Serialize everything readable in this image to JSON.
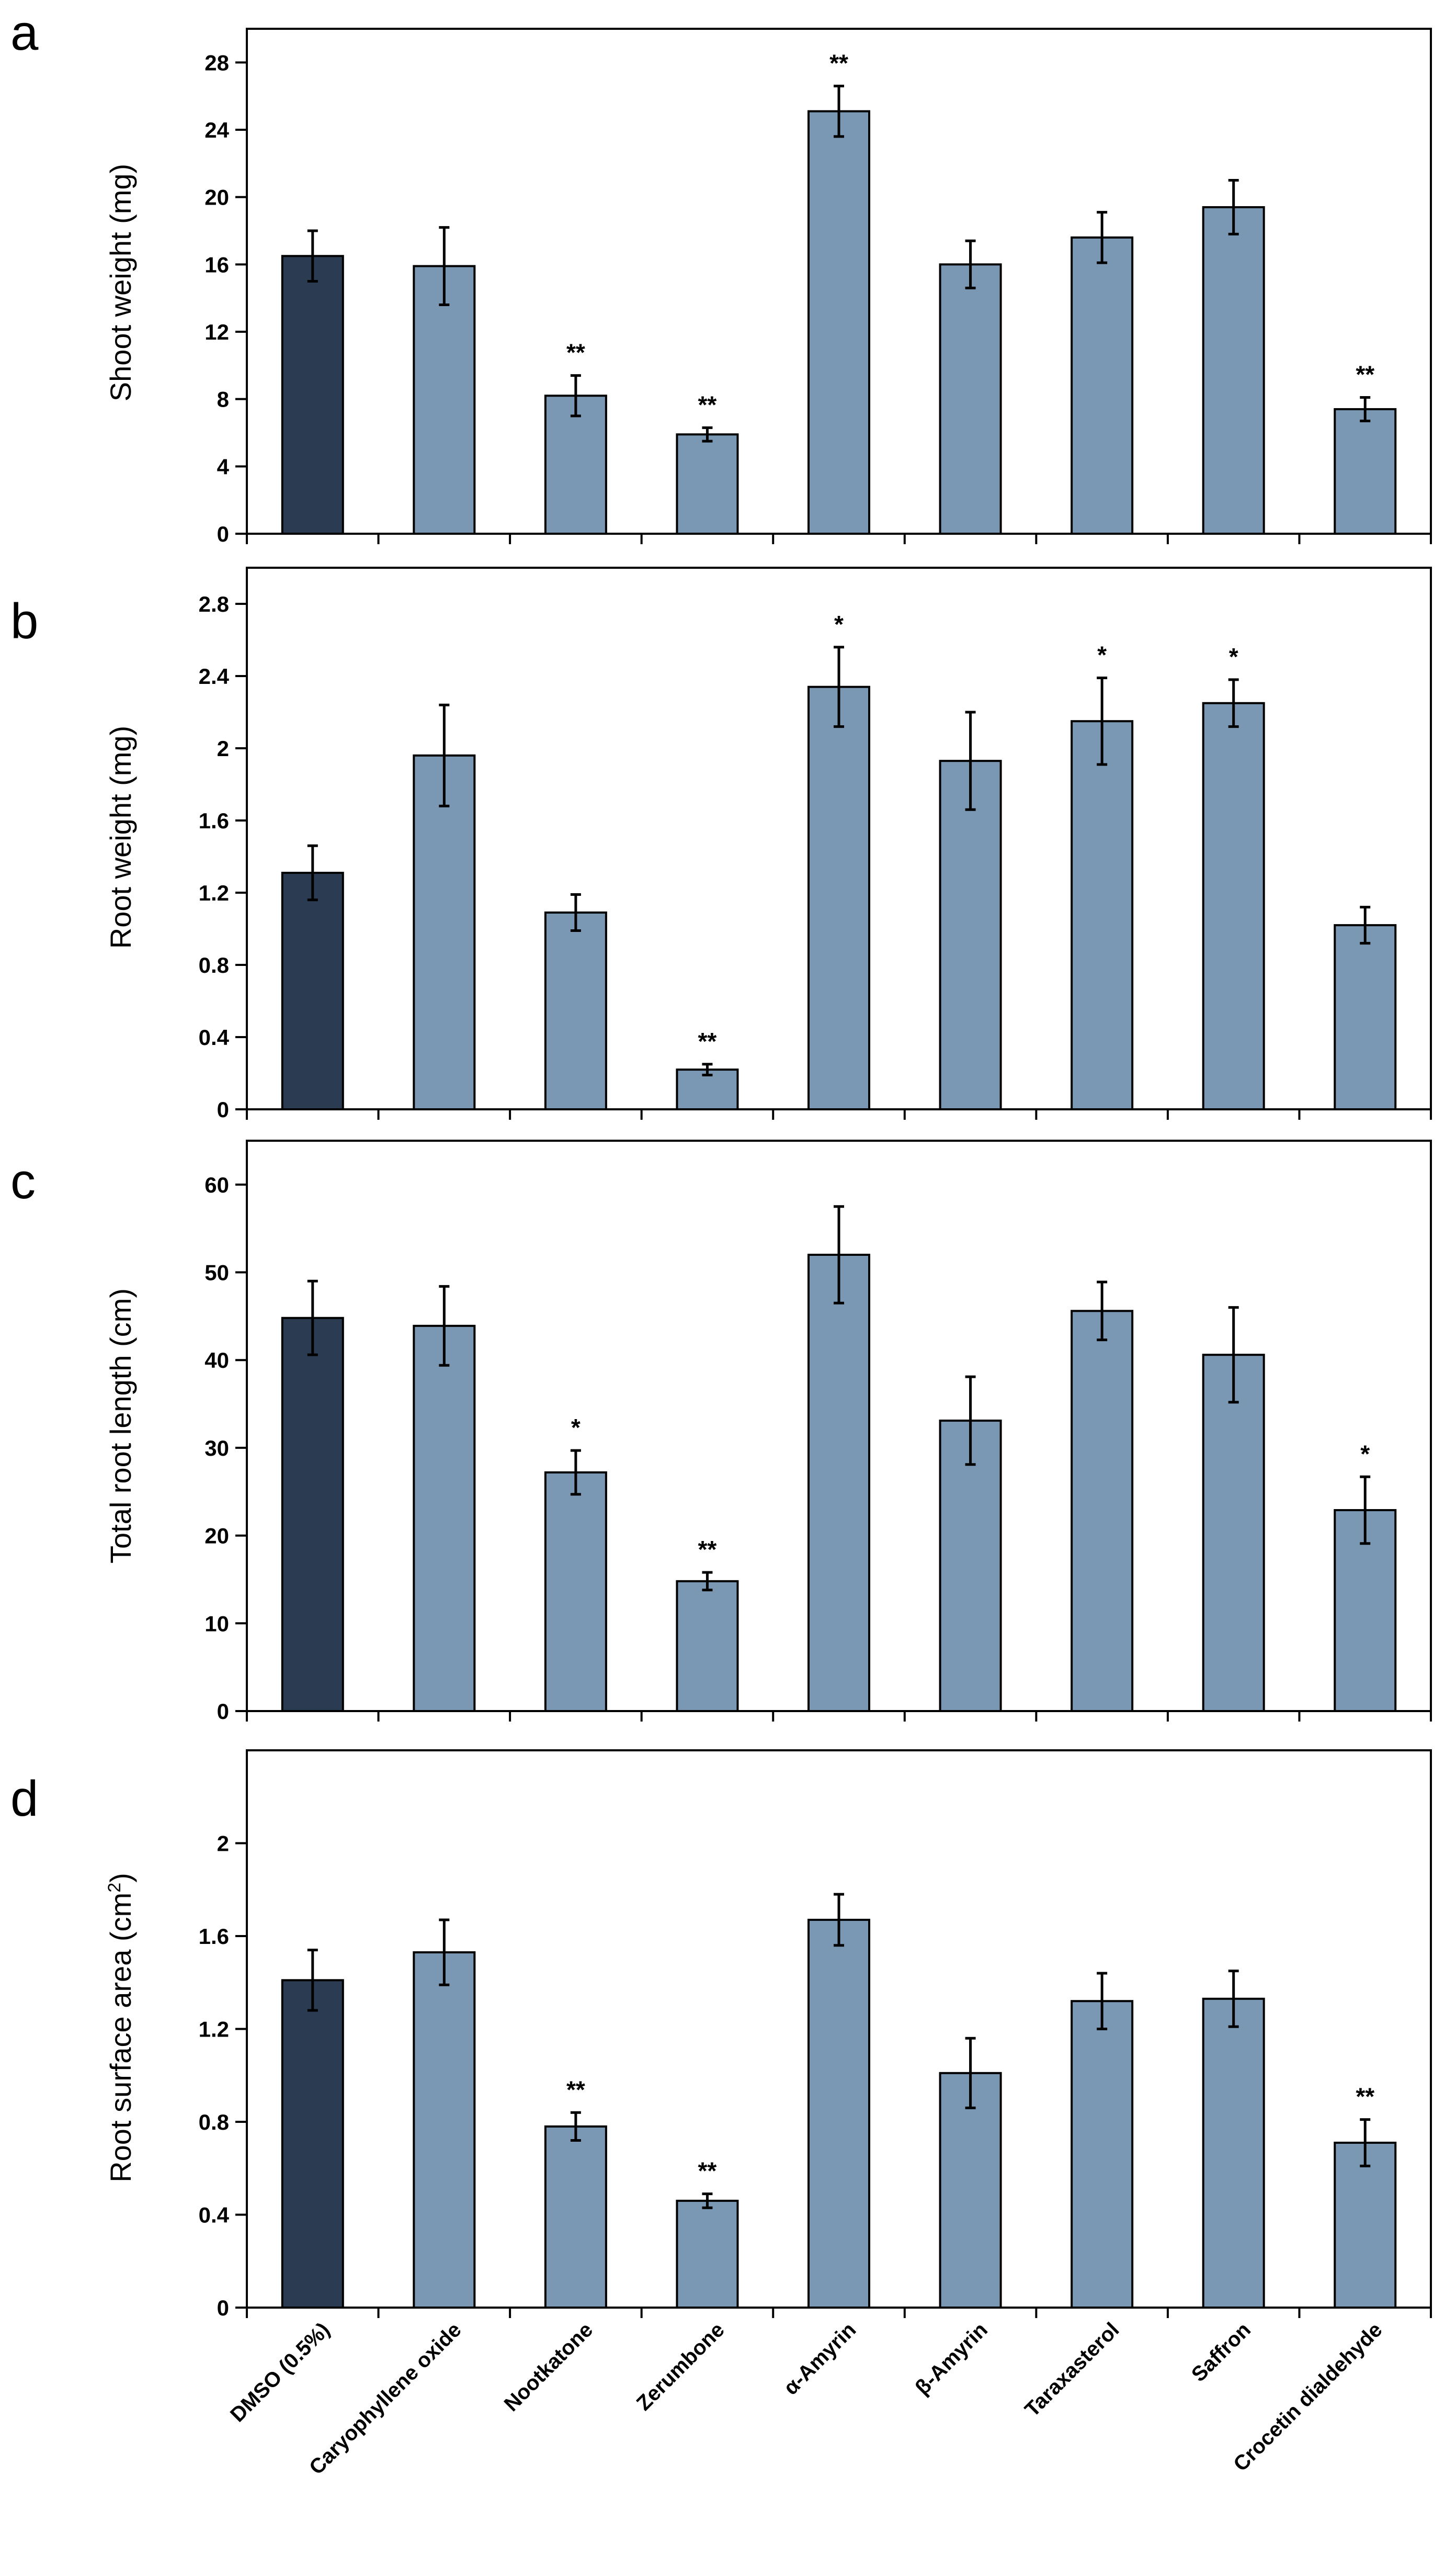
{
  "categories": [
    "DMSO (0.5%)",
    "Caryophyllene oxide",
    "Nootkatone",
    "Zerumbone",
    "α-Amyrin",
    "β-Amyrin",
    "Taraxasterol",
    "Saffron",
    "Crocetin dialdehyde"
  ],
  "colors": {
    "control": "#2b3c52",
    "treatment": "#7a97b3"
  },
  "chart_data": [
    {
      "panel": "a",
      "type": "bar",
      "ylabel": "Shoot weight (mg)",
      "ylim": [
        0,
        30
      ],
      "yticks": [
        0,
        4,
        8,
        12,
        16,
        20,
        24,
        28
      ],
      "tick_labels": [
        "0",
        "4",
        "8",
        "12",
        "16",
        "20",
        "24",
        "28"
      ],
      "values": [
        16.5,
        15.9,
        8.2,
        5.9,
        25.1,
        16.0,
        17.6,
        19.4,
        7.4
      ],
      "errors": [
        1.5,
        2.3,
        1.2,
        0.4,
        1.5,
        1.4,
        1.5,
        1.6,
        0.7
      ],
      "significance": [
        "",
        "",
        "**",
        "**",
        "**",
        "",
        "",
        "",
        "**"
      ]
    },
    {
      "panel": "b",
      "type": "bar",
      "ylabel": "Root weight (mg)",
      "ylim": [
        0,
        3.0
      ],
      "yticks": [
        0,
        0.4,
        0.8,
        1.2,
        1.6,
        2.0,
        2.4,
        2.8
      ],
      "tick_labels": [
        "0",
        "0.4",
        "0.8",
        "1.2",
        "1.6",
        "2",
        "2.4",
        "2.8"
      ],
      "values": [
        1.31,
        1.96,
        1.09,
        0.22,
        2.34,
        1.93,
        2.15,
        2.25,
        1.02
      ],
      "errors": [
        0.15,
        0.28,
        0.1,
        0.03,
        0.22,
        0.27,
        0.24,
        0.13,
        0.1
      ],
      "significance": [
        "",
        "",
        "",
        "**",
        "*",
        "",
        "*",
        "*",
        ""
      ]
    },
    {
      "panel": "c",
      "type": "bar",
      "ylabel": "Total root length (cm)",
      "ylim": [
        0,
        65
      ],
      "yticks": [
        0,
        10,
        20,
        30,
        40,
        50,
        60
      ],
      "tick_labels": [
        "0",
        "10",
        "20",
        "30",
        "40",
        "50",
        "60"
      ],
      "values": [
        44.8,
        43.9,
        27.2,
        14.8,
        52.0,
        33.1,
        45.6,
        40.6,
        22.9
      ],
      "errors": [
        4.2,
        4.5,
        2.5,
        1.0,
        5.5,
        5.0,
        3.3,
        5.4,
        3.8
      ],
      "significance": [
        "",
        "",
        "*",
        "**",
        "",
        "",
        "",
        "",
        "*"
      ]
    },
    {
      "panel": "d",
      "type": "bar",
      "ylabel": "Root surface area  (cm",
      "ylabel_sup": "2",
      "ylabel_end": ")",
      "ylim": [
        0,
        2.4
      ],
      "yticks": [
        0,
        0.4,
        0.8,
        1.2,
        1.6,
        2.0
      ],
      "tick_labels": [
        "0",
        "0.4",
        "0.8",
        "1.2",
        "1.6",
        "2"
      ],
      "values": [
        1.41,
        1.53,
        0.78,
        0.46,
        1.67,
        1.01,
        1.32,
        1.33,
        0.71
      ],
      "errors": [
        0.13,
        0.14,
        0.06,
        0.03,
        0.11,
        0.15,
        0.12,
        0.12,
        0.1
      ],
      "significance": [
        "",
        "",
        "**",
        "**",
        "",
        "",
        "",
        "",
        "**"
      ]
    }
  ]
}
